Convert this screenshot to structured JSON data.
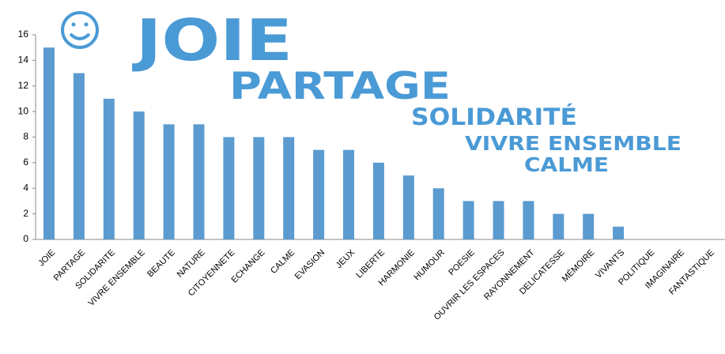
{
  "chart_data": {
    "type": "bar",
    "annotations": [
      "JOIE",
      "PARTAGE",
      "SOLIDARITÉ",
      "VIVRE ENSEMBLE",
      "CALME"
    ],
    "categories": [
      "JOIE",
      "PARTAGE",
      "SOLIDARITE",
      "VIVRE ENSEMBLE",
      "BEAUTE",
      "NATURE",
      "CITOYENNETE",
      "ECHANGE",
      "CALME",
      "EVASION",
      "JEUX",
      "LIBERTE",
      "HARMONIE",
      "HUMOUR",
      "POESIE",
      "OUVRIR LES ESPACES",
      "RAYONNEMENT",
      "DELICATESSE",
      "MÉMOIRE",
      "VIVANTS",
      "POLITIQUE",
      "IMAGINAIRE",
      "FANTASTIQUE"
    ],
    "values": [
      15,
      13,
      11,
      10,
      9,
      9,
      8,
      8,
      8,
      7,
      7,
      6,
      5,
      4,
      3,
      3,
      3,
      2,
      2,
      1,
      0,
      0,
      0
    ],
    "color": "#5b9bd0",
    "ylim": [
      0,
      16
    ],
    "yticks": [
      0,
      2,
      4,
      6,
      8,
      10,
      12,
      14,
      16
    ],
    "grid": false
  }
}
